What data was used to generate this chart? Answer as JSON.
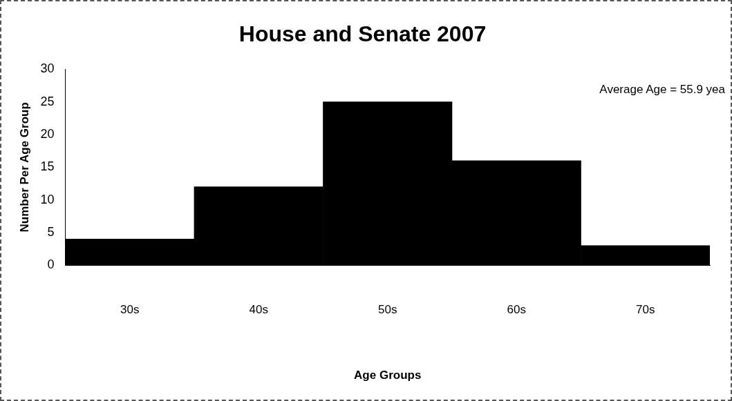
{
  "chart_data": {
    "type": "bar",
    "title": "House and Senate 2007",
    "xlabel": "Age Groups",
    "ylabel": "Number Per Age Group",
    "categories": [
      "30s",
      "40s",
      "50s",
      "60s",
      "70s"
    ],
    "values": [
      4,
      12,
      25,
      16,
      3
    ],
    "color": "#000000",
    "ylim": [
      0,
      30
    ],
    "yticks": [
      0,
      5,
      10,
      15,
      20,
      25,
      30
    ],
    "grid": false,
    "legend": false,
    "annotations": [
      "Average Age = 55.9 yea"
    ]
  }
}
